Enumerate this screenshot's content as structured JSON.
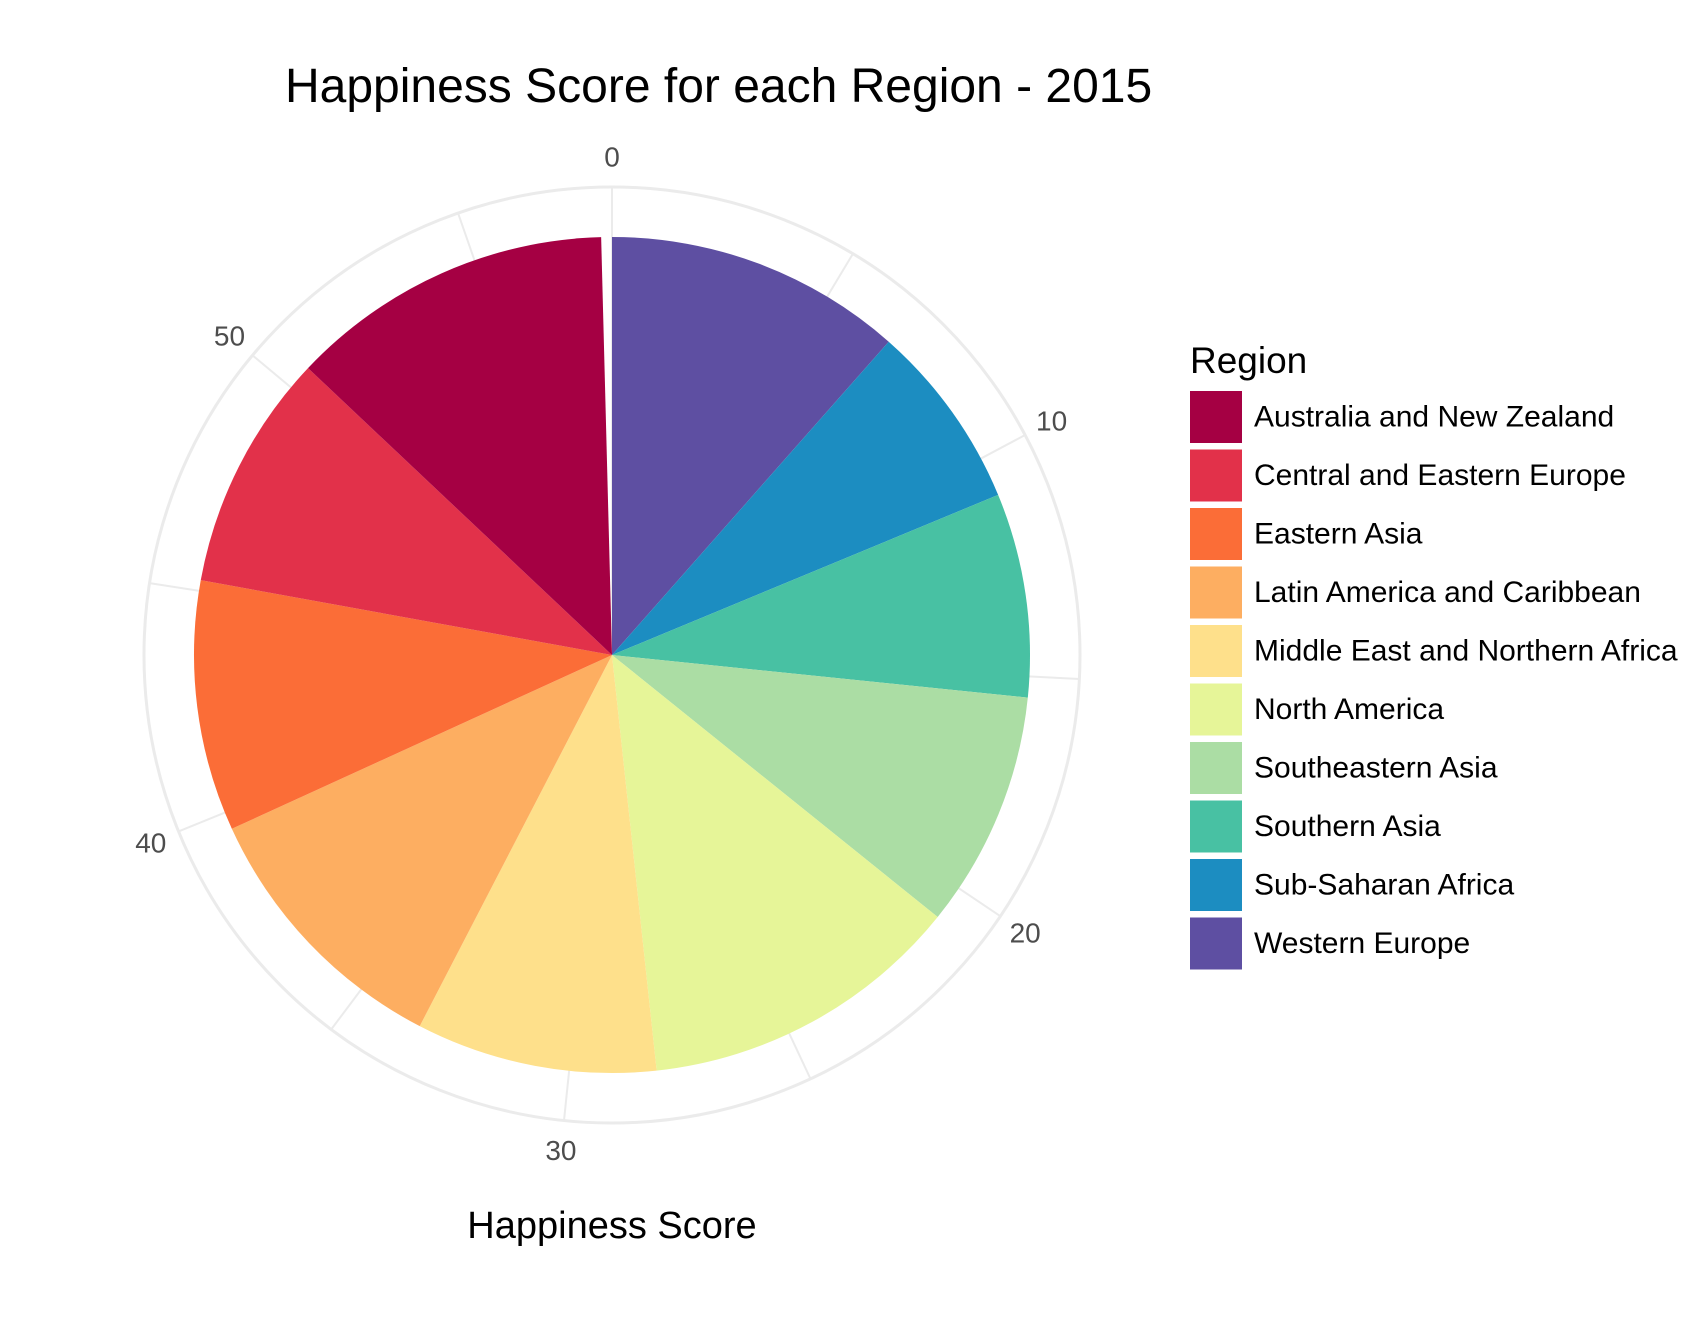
{
  "chart_data": {
    "type": "pie",
    "title": "Happiness Score for each Region - 2015",
    "xlabel": "Happiness Score",
    "axis_ticks": [
      "0",
      "10",
      "20",
      "30",
      "40",
      "50"
    ],
    "axis_range": [
      0,
      58.1
    ],
    "grid": true,
    "legend": {
      "title": "Region",
      "placement": "right"
    },
    "categories": [
      "Australia and New Zealand",
      "Central and Eastern Europe",
      "Eastern Asia",
      "Latin America and Caribbean",
      "Middle East and Northern Africa",
      "North America",
      "Southeastern Asia",
      "Southern Asia",
      "Sub-Saharan Africa",
      "Western Europe"
    ],
    "values": [
      7.29,
      5.33,
      5.63,
      6.14,
      5.41,
      7.27,
      5.32,
      4.58,
      4.2,
      6.69
    ],
    "colors": [
      "#A50043",
      "#E2314A",
      "#FB6D37",
      "#FDAE61",
      "#FEE08B",
      "#E6F598",
      "#ABDDA4",
      "#48C1A3",
      "#1C8DC1",
      "#5E4FA2"
    ]
  }
}
